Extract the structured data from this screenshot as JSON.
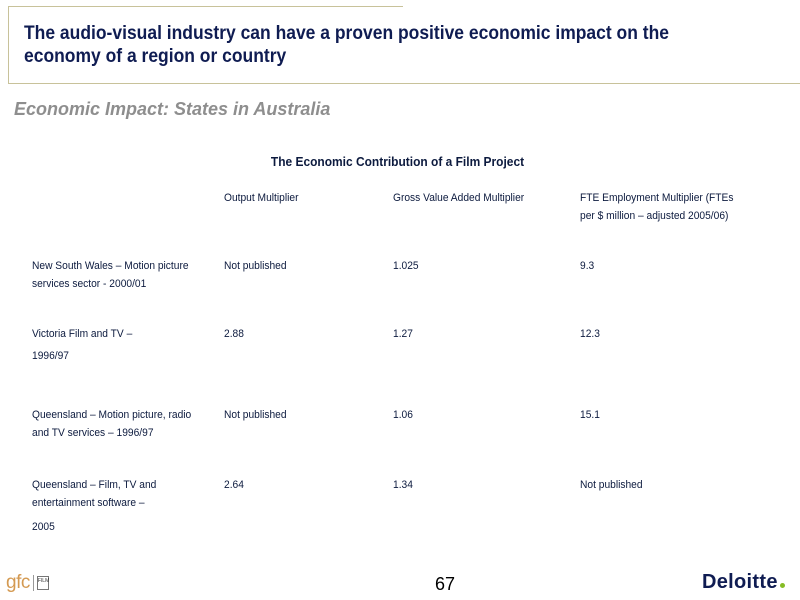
{
  "slide": {
    "title_line1": "The audio-visual industry can have a proven positive economic impact on the",
    "title_line2": "economy of a region or country",
    "subtitle": "Economic Impact: States in Australia",
    "page_number": "67"
  },
  "table": {
    "title": "The Economic Contribution of a Film Project",
    "headers": [
      "",
      "Output Multiplier",
      "Gross Value Added Multiplier",
      [
        "FTE Employment Multiplier (FTEs",
        "per $ million – adjusted 2005/06)"
      ]
    ],
    "rows": [
      [
        [
          "New South Wales – Motion picture",
          "services sector - 2000/01"
        ],
        "Not published",
        "1.025",
        "9.3"
      ],
      [
        [
          "Victoria Film and TV –",
          "1996/97"
        ],
        "2.88",
        "1.27",
        "12.3"
      ],
      [
        [
          "Queensland – Motion picture, radio",
          "and TV services – 1996/97"
        ],
        "Not published",
        "1.06",
        "15.1"
      ],
      [
        [
          "Queensland – Film, TV and",
          "entertainment software –",
          "2005"
        ],
        "2.64",
        "1.34",
        "Not published"
      ]
    ]
  },
  "logos": {
    "left_text": "gfc",
    "left_box_text": "FILM",
    "right_text": "Deloitte",
    "right_dot_color": "#86bc25"
  },
  "colors": {
    "title": "#0f1c52",
    "subtitle": "#8e8e8e",
    "frame": "#c8c29a"
  }
}
